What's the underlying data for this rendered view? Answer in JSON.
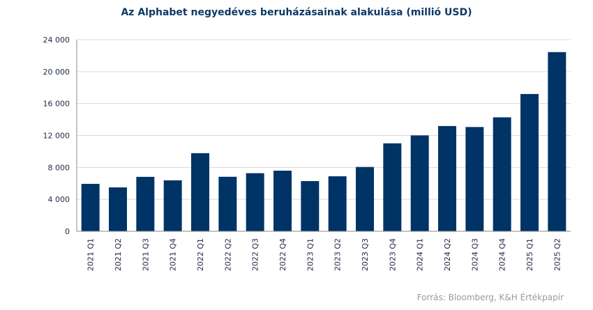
{
  "title": "Az Alphabet negyedéves beruházásainak alakulása (millió USD)",
  "source": "Forrás: Bloomberg, K&H Értékpapír",
  "chart_data": {
    "type": "bar",
    "title": "Az Alphabet negyedéves beruházásainak alakulása (millió USD)",
    "categories": [
      "2021 Q1",
      "2021 Q2",
      "2021 Q3",
      "2021 Q4",
      "2022 Q1",
      "2022 Q2",
      "2022 Q3",
      "2022 Q4",
      "2023 Q1",
      "2023 Q2",
      "2023 Q3",
      "2023 Q4",
      "2024 Q1",
      "2024 Q2",
      "2024 Q3",
      "2024 Q4",
      "2025 Q1",
      "2025 Q2"
    ],
    "values": [
      5942,
      5496,
      6819,
      6383,
      9786,
      6828,
      7276,
      7595,
      6289,
      6888,
      8055,
      11019,
      12012,
      13186,
      13061,
      14276,
      17197,
      22446
    ],
    "ylim": [
      0,
      24000
    ],
    "yticks": [
      0,
      4000,
      8000,
      12000,
      16000,
      20000,
      24000
    ],
    "ytick_labels": [
      "0",
      "4 000",
      "8 000",
      "12 000",
      "16 000",
      "20 000",
      "24 000"
    ],
    "bar_color": "#003366",
    "grid_color": "#d9d9d9",
    "grid": true
  }
}
